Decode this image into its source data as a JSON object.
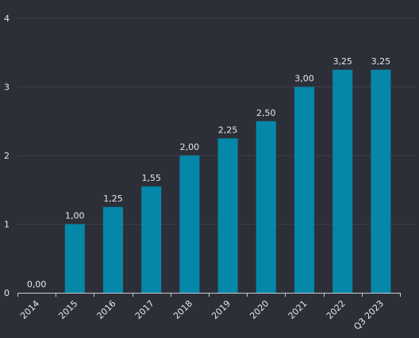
{
  "chart_data": {
    "type": "bar",
    "categories": [
      "2014",
      "2015",
      "2016",
      "2017",
      "2018",
      "2019",
      "2020",
      "2021",
      "2022",
      "Q3 2023"
    ],
    "values": [
      0,
      1.0,
      1.25,
      1.55,
      2.0,
      2.25,
      2.5,
      3.0,
      3.25,
      3.25
    ],
    "data_labels": [
      "0,00",
      "1,00",
      "1,25",
      "1,55",
      "2,00",
      "2,25",
      "2,50",
      "3,00",
      "3,25",
      "3,25"
    ],
    "y_ticks": [
      0,
      1,
      2,
      3,
      4
    ],
    "y_tick_labels": [
      "0",
      "1",
      "2",
      "3",
      "4"
    ],
    "ylim": [
      0,
      4
    ],
    "title": "",
    "xlabel": "",
    "ylabel": "",
    "grid": true,
    "legend": "none",
    "colors": {
      "bar": "#0487a8",
      "background": "#2d2f38",
      "grid": "#3d404a",
      "axis": "#c9cbd1",
      "text": "#e6e7ea"
    }
  }
}
